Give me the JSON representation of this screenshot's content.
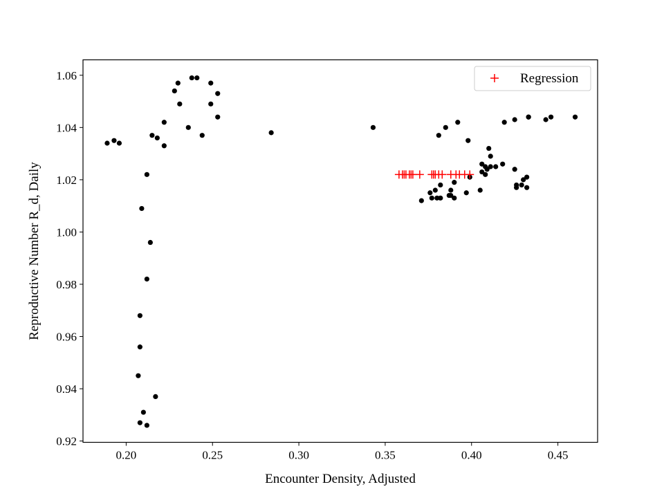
{
  "chart_data": {
    "type": "scatter",
    "xlabel": "Encounter Density, Adjusted",
    "ylabel": "Reproductive Number R_d, Daily",
    "xlim": [
      0.175,
      0.473
    ],
    "ylim": [
      0.9195,
      1.0659
    ],
    "x_ticks": [
      0.2,
      0.25,
      0.3,
      0.35,
      0.4,
      0.45
    ],
    "x_tick_labels": [
      "0.20",
      "0.25",
      "0.30",
      "0.35",
      "0.40",
      "0.45"
    ],
    "y_ticks": [
      0.92,
      0.94,
      0.96,
      0.98,
      1.0,
      1.02,
      1.04,
      1.06
    ],
    "y_tick_labels": [
      "0.92",
      "0.94",
      "0.96",
      "0.98",
      "1.00",
      "1.02",
      "1.04",
      "1.06"
    ],
    "grid": false,
    "legend_position": "top-right",
    "series": [
      {
        "marker": "circle",
        "color": "#000000",
        "points": [
          [
            0.189,
            1.034
          ],
          [
            0.193,
            1.035
          ],
          [
            0.196,
            1.034
          ],
          [
            0.212,
            1.022
          ],
          [
            0.209,
            1.009
          ],
          [
            0.214,
            0.996
          ],
          [
            0.212,
            0.982
          ],
          [
            0.208,
            0.968
          ],
          [
            0.208,
            0.956
          ],
          [
            0.207,
            0.945
          ],
          [
            0.217,
            0.937
          ],
          [
            0.21,
            0.931
          ],
          [
            0.208,
            0.927
          ],
          [
            0.212,
            0.926
          ],
          [
            0.215,
            1.037
          ],
          [
            0.218,
            1.036
          ],
          [
            0.222,
            1.042
          ],
          [
            0.222,
            1.033
          ],
          [
            0.228,
            1.054
          ],
          [
            0.23,
            1.057
          ],
          [
            0.231,
            1.049
          ],
          [
            0.236,
            1.04
          ],
          [
            0.238,
            1.059
          ],
          [
            0.241,
            1.059
          ],
          [
            0.244,
            1.037
          ],
          [
            0.249,
            1.057
          ],
          [
            0.249,
            1.049
          ],
          [
            0.253,
            1.053
          ],
          [
            0.253,
            1.044
          ],
          [
            0.284,
            1.038
          ],
          [
            0.343,
            1.04
          ],
          [
            0.371,
            1.012
          ],
          [
            0.376,
            1.015
          ],
          [
            0.377,
            1.013
          ],
          [
            0.379,
            1.016
          ],
          [
            0.38,
            1.013
          ],
          [
            0.381,
            1.037
          ],
          [
            0.382,
            1.018
          ],
          [
            0.382,
            1.013
          ],
          [
            0.385,
            1.04
          ],
          [
            0.387,
            1.014
          ],
          [
            0.388,
            1.016
          ],
          [
            0.388,
            1.014
          ],
          [
            0.39,
            1.013
          ],
          [
            0.39,
            1.019
          ],
          [
            0.392,
            1.042
          ],
          [
            0.397,
            1.015
          ],
          [
            0.398,
            1.035
          ],
          [
            0.399,
            1.021
          ],
          [
            0.405,
            1.016
          ],
          [
            0.406,
            1.026
          ],
          [
            0.406,
            1.023
          ],
          [
            0.408,
            1.025
          ],
          [
            0.408,
            1.022
          ],
          [
            0.409,
            1.024
          ],
          [
            0.41,
            1.032
          ],
          [
            0.411,
            1.029
          ],
          [
            0.411,
            1.025
          ],
          [
            0.414,
            1.025
          ],
          [
            0.418,
            1.026
          ],
          [
            0.419,
            1.042
          ],
          [
            0.425,
            1.043
          ],
          [
            0.425,
            1.024
          ],
          [
            0.426,
            1.018
          ],
          [
            0.426,
            1.017
          ],
          [
            0.429,
            1.018
          ],
          [
            0.43,
            1.02
          ],
          [
            0.432,
            1.021
          ],
          [
            0.432,
            1.017
          ],
          [
            0.433,
            1.044
          ],
          [
            0.433,
            1.044
          ],
          [
            0.443,
            1.043
          ],
          [
            0.446,
            1.044
          ],
          [
            0.46,
            1.044
          ]
        ]
      },
      {
        "name": "Regression",
        "marker": "plus",
        "color": "#ff0000",
        "x": [
          0.358,
          0.36,
          0.361,
          0.362,
          0.364,
          0.365,
          0.366,
          0.37,
          0.377,
          0.378,
          0.379,
          0.381,
          0.383,
          0.388,
          0.391,
          0.393,
          0.396,
          0.399
        ],
        "y": [
          1.022,
          1.022,
          1.022,
          1.022,
          1.022,
          1.022,
          1.022,
          1.022,
          1.022,
          1.022,
          1.022,
          1.022,
          1.022,
          1.022,
          1.022,
          1.022,
          1.022,
          1.022
        ]
      }
    ]
  }
}
